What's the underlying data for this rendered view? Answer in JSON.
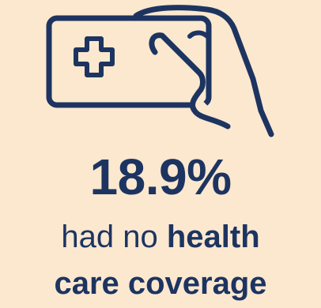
{
  "icon": "health-card-in-hand-icon",
  "colors": {
    "background": "#fbe8cf",
    "text": "#1d3461"
  },
  "stat": {
    "value": "18.9%"
  },
  "caption": {
    "line1_regular": "had no",
    "line1_bold": "health",
    "line2_bold": "care coverage"
  }
}
